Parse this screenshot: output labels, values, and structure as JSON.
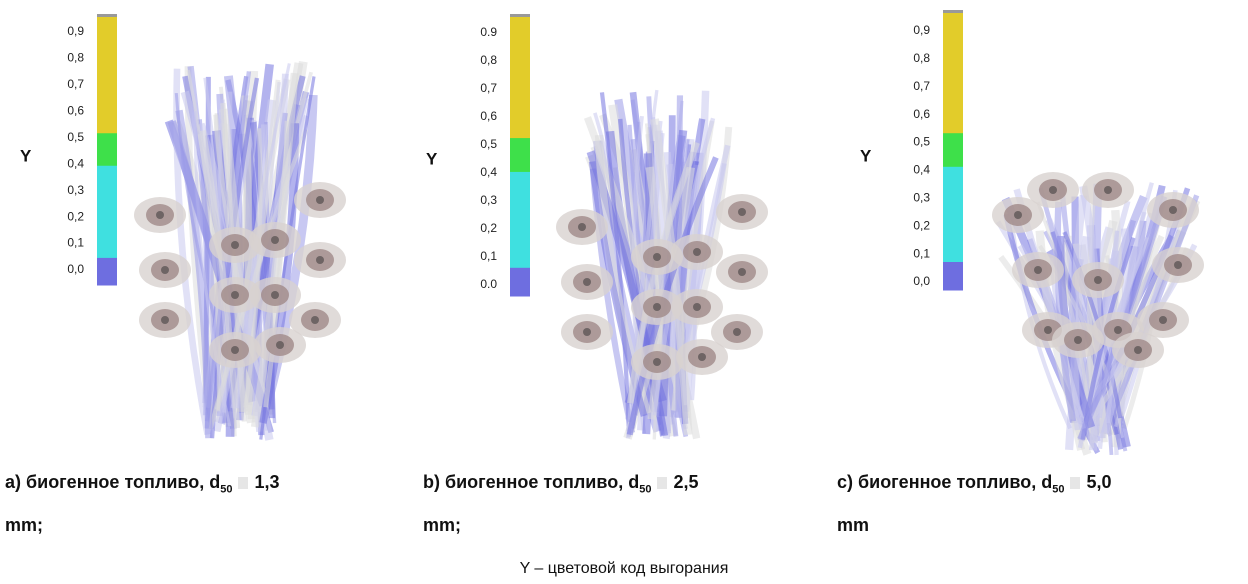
{
  "panels": [
    {
      "y_label": "Y",
      "scale_labels": [
        "0,9",
        "0,8",
        "0,7",
        "0,6",
        "0,5",
        "0,4",
        "0,3",
        "0,2",
        "0,1",
        "0,0"
      ],
      "caption": {
        "label": "a) биогенное топливо, d",
        "subscript": "50",
        "value": "1,3",
        "unit": "mm;"
      }
    },
    {
      "y_label": "Y",
      "scale_labels": [
        "0.9",
        "0,8",
        "0,7",
        "0,6",
        "0,5",
        "0,4",
        "0,3",
        "0,2",
        "0,1",
        "0.0"
      ],
      "caption": {
        "label": "b) биогенное топливо, d",
        "subscript": "50",
        "value": "2,5",
        "unit": "mm;"
      }
    },
    {
      "y_label": "Y",
      "scale_labels": [
        "0,9",
        "0,8",
        "0,7",
        "0,6",
        "0,5",
        "0,4",
        "0,3",
        "0,2",
        "0,1",
        "0,0"
      ],
      "caption": {
        "label": "c) биогенное топливо, d",
        "subscript": "50",
        "value": "5,0",
        "unit": "mm"
      }
    }
  ],
  "footer": "Y – цветовой код выгорания"
}
